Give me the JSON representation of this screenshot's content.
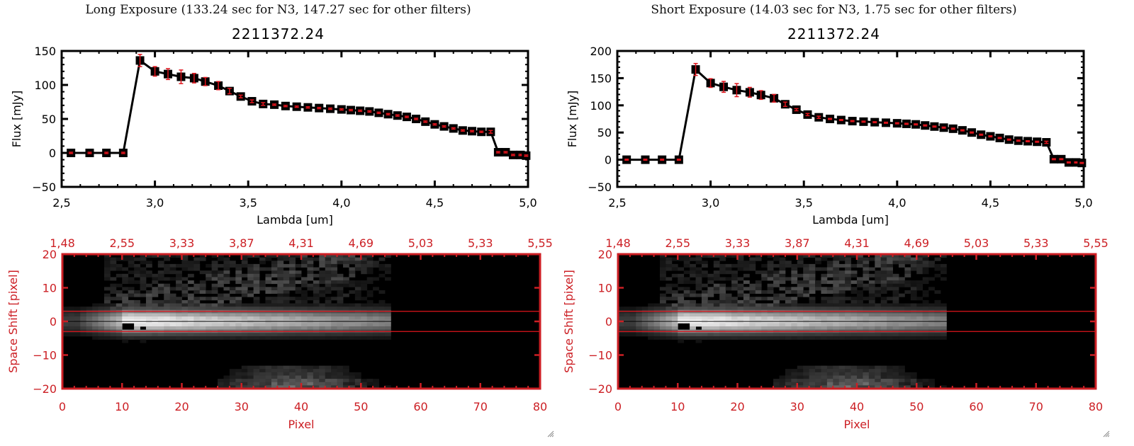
{
  "panels": [
    {
      "id": "long",
      "exposure_title": "Long Exposure (133.24 sec for N3, 147.27 sec for other filters)",
      "object_title": "2211372.24"
    },
    {
      "id": "short",
      "exposure_title": "Short Exposure (14.03 sec for N3, 1.75 sec for other filters)",
      "object_title": "2211372.24"
    }
  ],
  "colors": {
    "spectrum_line": "#000000",
    "error_bar": "#e0141c",
    "image_axes": "#cc1f24",
    "extraction_lines": "#e0141c",
    "center_line": "#000000"
  },
  "chart_data": [
    {
      "type": "line",
      "panel": "long",
      "title": "2211372.24",
      "xlabel": "Lambda [um]",
      "ylabel": "Flux [mJy]",
      "xlim": [
        2.5,
        5.0
      ],
      "ylim": [
        -50,
        150
      ],
      "xticks": [
        "2.5",
        "3.0",
        "3.5",
        "4.0",
        "4.5",
        "5.0"
      ],
      "yticks": [
        "-50",
        "0",
        "50",
        "100",
        "150"
      ],
      "x": [
        2.55,
        2.65,
        2.74,
        2.83,
        2.92,
        3.0,
        3.07,
        3.14,
        3.21,
        3.27,
        3.34,
        3.4,
        3.46,
        3.52,
        3.58,
        3.64,
        3.7,
        3.76,
        3.82,
        3.88,
        3.94,
        4.0,
        4.05,
        4.1,
        4.15,
        4.2,
        4.25,
        4.3,
        4.35,
        4.4,
        4.45,
        4.5,
        4.55,
        4.6,
        4.65,
        4.7,
        4.75,
        4.8,
        4.84,
        4.88,
        4.92,
        4.96,
        4.99
      ],
      "y": [
        0,
        0,
        0,
        0,
        136,
        120,
        116,
        112,
        110,
        105,
        99,
        91,
        83,
        76,
        72,
        71,
        69,
        68,
        67,
        66,
        65,
        64,
        63,
        62,
        61,
        59,
        57,
        55,
        53,
        50,
        46,
        42,
        39,
        36,
        33,
        32,
        31,
        31,
        1,
        1,
        -3,
        -3,
        -4
      ],
      "yerr": [
        1,
        1,
        1,
        1,
        9,
        7,
        8,
        10,
        7,
        6,
        6,
        4,
        2,
        2,
        2,
        1,
        1,
        1,
        1,
        1,
        1,
        1,
        1,
        1,
        1,
        1,
        1,
        1,
        1,
        1,
        1,
        1,
        1,
        1,
        1,
        1,
        1,
        2,
        1,
        1,
        1,
        1,
        1
      ]
    },
    {
      "type": "line",
      "panel": "short",
      "title": "2211372.24",
      "xlabel": "Lambda [um]",
      "ylabel": "Flux [mJy]",
      "xlim": [
        2.5,
        5.0
      ],
      "ylim": [
        -50,
        200
      ],
      "xticks": [
        "2.5",
        "3.0",
        "3.5",
        "4.0",
        "4.5",
        "5.0"
      ],
      "yticks": [
        "-50",
        "0",
        "50",
        "100",
        "150",
        "200"
      ],
      "x": [
        2.55,
        2.65,
        2.74,
        2.83,
        2.92,
        3.0,
        3.07,
        3.14,
        3.21,
        3.27,
        3.34,
        3.4,
        3.46,
        3.52,
        3.58,
        3.64,
        3.7,
        3.76,
        3.82,
        3.88,
        3.94,
        4.0,
        4.05,
        4.1,
        4.15,
        4.2,
        4.25,
        4.3,
        4.35,
        4.4,
        4.45,
        4.5,
        4.55,
        4.6,
        4.65,
        4.7,
        4.75,
        4.8,
        4.84,
        4.88,
        4.92,
        4.96,
        4.99
      ],
      "y": [
        0,
        0,
        0,
        0,
        166,
        141,
        134,
        128,
        124,
        119,
        113,
        102,
        92,
        83,
        78,
        75,
        73,
        71,
        70,
        69,
        68,
        67,
        66,
        65,
        63,
        61,
        59,
        57,
        54,
        50,
        46,
        43,
        40,
        37,
        35,
        34,
        33,
        32,
        1,
        1,
        -5,
        -5,
        -6
      ],
      "yerr": [
        1,
        1,
        1,
        1,
        11,
        8,
        10,
        12,
        9,
        8,
        7,
        4,
        2,
        2,
        2,
        1,
        1,
        1,
        1,
        1,
        1,
        1,
        1,
        1,
        1,
        1,
        1,
        1,
        1,
        1,
        1,
        1,
        1,
        1,
        1,
        1,
        1,
        2,
        1,
        1,
        1,
        1,
        1
      ]
    },
    {
      "type": "heatmap",
      "panel": "long",
      "xlabel": "Pixel",
      "ylabel": "Space Shift [pixel]",
      "xlim": [
        0,
        80
      ],
      "ylim": [
        -20,
        20
      ],
      "xticks": [
        "0",
        "10",
        "20",
        "30",
        "40",
        "50",
        "60",
        "70",
        "80"
      ],
      "yticks": [
        "-20",
        "-10",
        "0",
        "10",
        "20"
      ],
      "top_xticks": [
        "1.48",
        "2.55",
        "3.33",
        "3.87",
        "4.31",
        "4.69",
        "5.03",
        "5.33",
        "5.55"
      ],
      "extraction_window": [
        -3,
        3
      ],
      "data_extent_x": [
        0,
        55
      ]
    },
    {
      "type": "heatmap",
      "panel": "short",
      "xlabel": "Pixel",
      "ylabel": "Space Shift [pixel]",
      "xlim": [
        0,
        80
      ],
      "ylim": [
        -20,
        20
      ],
      "xticks": [
        "0",
        "10",
        "20",
        "30",
        "40",
        "50",
        "60",
        "70",
        "80"
      ],
      "yticks": [
        "-20",
        "-10",
        "0",
        "10",
        "20"
      ],
      "top_xticks": [
        "1.48",
        "2.55",
        "3.33",
        "3.87",
        "4.31",
        "4.69",
        "5.03",
        "5.33",
        "5.55"
      ],
      "extraction_window": [
        -3,
        3
      ],
      "data_extent_x": [
        0,
        55
      ]
    }
  ]
}
